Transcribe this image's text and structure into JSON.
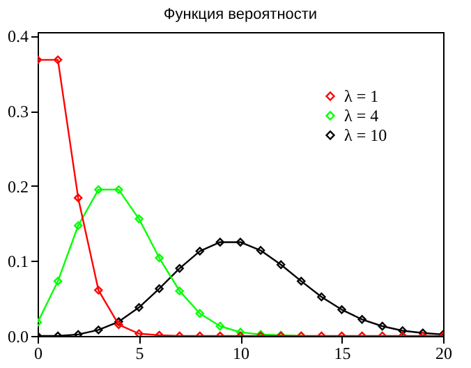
{
  "chart_data": {
    "type": "line",
    "title": "Функция вероятности",
    "x": [
      0,
      1,
      2,
      3,
      4,
      5,
      6,
      7,
      8,
      9,
      10,
      11,
      12,
      13,
      14,
      15,
      16,
      17,
      18,
      19,
      20
    ],
    "series": [
      {
        "name": "λ = 1",
        "color": "#ff0000",
        "values": [
          0.368,
          0.368,
          0.184,
          0.061,
          0.015,
          0.003,
          0.001,
          0,
          0,
          0,
          0,
          0,
          0,
          0,
          0,
          0,
          0,
          0,
          0,
          0,
          0
        ]
      },
      {
        "name": "λ = 4",
        "color": "#00ff00",
        "values": [
          0.018,
          0.073,
          0.147,
          0.195,
          0.195,
          0.156,
          0.104,
          0.06,
          0.03,
          0.013,
          0.005,
          0.002,
          0.001,
          0,
          null,
          null,
          null,
          null,
          null,
          null,
          null
        ]
      },
      {
        "name": "λ = 10",
        "color": "#000000",
        "values": [
          0,
          0,
          0.002,
          0.008,
          0.019,
          0.038,
          0.063,
          0.09,
          0.113,
          0.125,
          0.125,
          0.114,
          0.095,
          0.073,
          0.052,
          0.035,
          0.022,
          0.013,
          0.007,
          0.004,
          0.002
        ]
      }
    ],
    "xlim": [
      0,
      20
    ],
    "xticks": [
      0,
      5,
      10,
      15,
      20
    ],
    "ylim": [
      0,
      0.405
    ],
    "yticks": [
      {
        "value": 0,
        "label": "0.0"
      },
      {
        "value": 0.1,
        "label": "0.1"
      },
      {
        "value": 0.2,
        "label": "0.2"
      },
      {
        "value": 0.3,
        "label": "0.3"
      },
      {
        "value": 0.4,
        "label": "0.4"
      }
    ],
    "grid": false,
    "legend": "top right",
    "marker": "diamond",
    "line_style": "solid"
  }
}
